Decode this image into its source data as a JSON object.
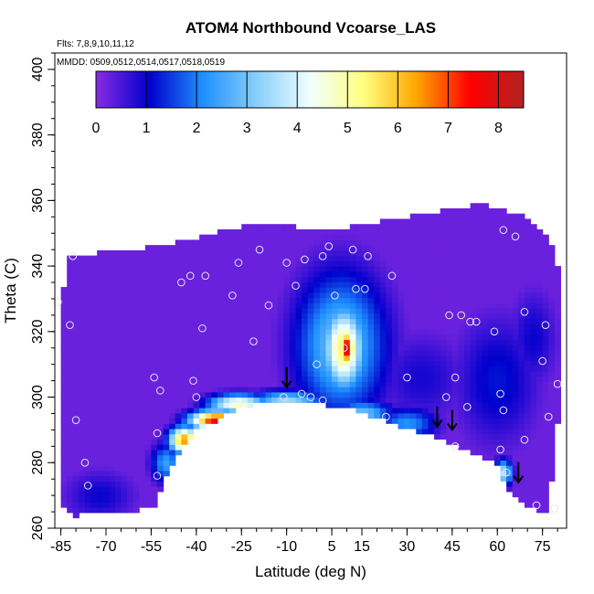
{
  "chart_data": {
    "type": "heatmap",
    "title": "ATOM4 Northbound Vcoarse_LAS",
    "annotations": [
      "Flts: 7,8,9,10,11,12",
      "MMDD: 0509,0512,0514,0517,0518,0519"
    ],
    "xlabel": "Latitude (deg N)",
    "ylabel": "Theta (C)",
    "xlim": [
      -87,
      83
    ],
    "ylim": [
      260,
      405
    ],
    "x_ticks": [
      -85,
      -70,
      -55,
      -40,
      -25,
      -10,
      5,
      15,
      30,
      45,
      60,
      75
    ],
    "x_tick_labels": [
      "-85",
      "-70",
      "-55",
      "-40",
      "-25",
      "-10",
      "5",
      "15",
      "30",
      "45",
      "60",
      "75"
    ],
    "x_minor_step": 5,
    "y_ticks": [
      260,
      280,
      300,
      320,
      340,
      360,
      380,
      400
    ],
    "y_tick_labels": [
      "260",
      "280",
      "300",
      "320",
      "340",
      "360",
      "380",
      "400"
    ],
    "y_minor_step": 5,
    "colorbar": {
      "min": 0,
      "max": 8.5,
      "ticks": [
        0,
        1,
        2,
        3,
        4,
        5,
        6,
        7,
        8
      ],
      "tick_labels": [
        "0",
        "1",
        "2",
        "3",
        "4",
        "5",
        "6",
        "7",
        "8"
      ],
      "colors": [
        "#8a2be2",
        "#0000cd",
        "#1e90ff",
        "#87cefa",
        "#f0ffff",
        "#ffff80",
        "#ffa500",
        "#ff0000",
        "#b22222"
      ]
    },
    "grid": false,
    "field_background_value": 0.25,
    "region_outline": [
      [
        -85,
        329
      ],
      [
        -82,
        343
      ],
      [
        -53,
        346
      ],
      [
        -20,
        353
      ],
      [
        5,
        351
      ],
      [
        54,
        359
      ],
      [
        70,
        355
      ],
      [
        79,
        346
      ],
      [
        82,
        330
      ],
      [
        82,
        304
      ],
      [
        79,
        285
      ],
      [
        77,
        265
      ],
      [
        70,
        266
      ],
      [
        63,
        272
      ],
      [
        60,
        280
      ],
      [
        50,
        284
      ],
      [
        40,
        288
      ],
      [
        25,
        292
      ],
      [
        10,
        297
      ],
      [
        0,
        298
      ],
      [
        -10,
        299
      ],
      [
        -25,
        297
      ],
      [
        -40,
        290
      ],
      [
        -48,
        280
      ],
      [
        -52,
        272
      ],
      [
        -54,
        266
      ],
      [
        -80,
        264
      ],
      [
        -85,
        268
      ]
    ],
    "hotspots": [
      {
        "lat": 10,
        "theta": 315,
        "value": 7.9,
        "r_lat": 3,
        "r_theta": 6
      },
      {
        "lat": 9,
        "theta": 315,
        "value": 5.5,
        "r_lat": 7,
        "r_theta": 13
      },
      {
        "lat": 8,
        "theta": 316,
        "value": 3.0,
        "r_lat": 15,
        "r_theta": 22
      },
      {
        "lat": -33,
        "theta": 293,
        "value": 7.8,
        "r_lat": 9,
        "r_theta": 3
      },
      {
        "lat": -44,
        "theta": 287,
        "value": 6.5,
        "r_lat": 5,
        "r_theta": 4
      },
      {
        "lat": -26,
        "theta": 298,
        "value": 4.8,
        "r_lat": 10,
        "r_theta": 3
      },
      {
        "lat": -10,
        "theta": 299,
        "value": 3.4,
        "r_lat": 12,
        "r_theta": 3
      },
      {
        "lat": 15,
        "theta": 295,
        "value": 3.0,
        "r_lat": 10,
        "r_theta": 4
      },
      {
        "lat": 30,
        "theta": 292,
        "value": 2.2,
        "r_lat": 10,
        "r_theta": 5
      },
      {
        "lat": 62,
        "theta": 277,
        "value": 3.6,
        "r_lat": 3,
        "r_theta": 4
      },
      {
        "lat": -50,
        "theta": 280,
        "value": 2.4,
        "r_lat": 5,
        "r_theta": 6
      },
      {
        "lat": 60,
        "theta": 305,
        "value": 1.2,
        "r_lat": 14,
        "r_theta": 20
      },
      {
        "lat": 72,
        "theta": 318,
        "value": 1.0,
        "r_lat": 8,
        "r_theta": 15
      },
      {
        "lat": -72,
        "theta": 270,
        "value": 1.0,
        "r_lat": 12,
        "r_theta": 8
      },
      {
        "lat": 35,
        "theta": 306,
        "value": 0.9,
        "r_lat": 15,
        "r_theta": 14
      }
    ],
    "observations": [
      {
        "lat": -86,
        "theta": 329
      },
      {
        "lat": -81,
        "theta": 343
      },
      {
        "lat": -82,
        "theta": 322
      },
      {
        "lat": -80,
        "theta": 293
      },
      {
        "lat": -77,
        "theta": 280
      },
      {
        "lat": -76,
        "theta": 273
      },
      {
        "lat": -54,
        "theta": 306
      },
      {
        "lat": -52,
        "theta": 302
      },
      {
        "lat": -53,
        "theta": 289
      },
      {
        "lat": -53,
        "theta": 276
      },
      {
        "lat": -45,
        "theta": 335
      },
      {
        "lat": -42,
        "theta": 337
      },
      {
        "lat": -37,
        "theta": 337
      },
      {
        "lat": -41,
        "theta": 305
      },
      {
        "lat": -40,
        "theta": 300
      },
      {
        "lat": -38,
        "theta": 321
      },
      {
        "lat": -28,
        "theta": 331
      },
      {
        "lat": -26,
        "theta": 341
      },
      {
        "lat": -21,
        "theta": 317
      },
      {
        "lat": -19,
        "theta": 345
      },
      {
        "lat": -16,
        "theta": 328
      },
      {
        "lat": -10,
        "theta": 341
      },
      {
        "lat": -7,
        "theta": 334
      },
      {
        "lat": -4,
        "theta": 342
      },
      {
        "lat": 2,
        "theta": 343
      },
      {
        "lat": 4,
        "theta": 346
      },
      {
        "lat": 6,
        "theta": 331
      },
      {
        "lat": 9,
        "theta": 315
      },
      {
        "lat": 12,
        "theta": 345
      },
      {
        "lat": 13,
        "theta": 333
      },
      {
        "lat": 16,
        "theta": 333
      },
      {
        "lat": 17,
        "theta": 343
      },
      {
        "lat": 23,
        "theta": 294
      },
      {
        "lat": 25,
        "theta": 337
      },
      {
        "lat": 30,
        "theta": 306
      },
      {
        "lat": 44,
        "theta": 325
      },
      {
        "lat": 46,
        "theta": 306
      },
      {
        "lat": 48,
        "theta": 325
      },
      {
        "lat": 51,
        "theta": 323
      },
      {
        "lat": 53,
        "theta": 323
      },
      {
        "lat": 59,
        "theta": 320
      },
      {
        "lat": 62,
        "theta": 351
      },
      {
        "lat": 66,
        "theta": 349
      },
      {
        "lat": 69,
        "theta": 326
      },
      {
        "lat": 75,
        "theta": 311
      },
      {
        "lat": 76,
        "theta": 322
      },
      {
        "lat": 77,
        "theta": 294
      },
      {
        "lat": 80,
        "theta": 304
      },
      {
        "lat": 61,
        "theta": 301
      },
      {
        "lat": 62,
        "theta": 296
      },
      {
        "lat": 46,
        "theta": 285
      },
      {
        "lat": 50,
        "theta": 297
      },
      {
        "lat": 43,
        "theta": 300
      },
      {
        "lat": 61,
        "theta": 284
      },
      {
        "lat": 63,
        "theta": 277
      },
      {
        "lat": 69,
        "theta": 287
      },
      {
        "lat": 73,
        "theta": 267
      },
      {
        "lat": 79,
        "theta": 266
      },
      {
        "lat": -11,
        "theta": 300
      },
      {
        "lat": -2,
        "theta": 300
      },
      {
        "lat": 2,
        "theta": 299
      },
      {
        "lat": 0,
        "theta": 310
      },
      {
        "lat": -5,
        "theta": 301
      }
    ],
    "arrows": [
      {
        "lat": -10,
        "theta": 303
      },
      {
        "lat": 40,
        "theta": 291
      },
      {
        "lat": 45,
        "theta": 290
      },
      {
        "lat": 67,
        "theta": 274
      }
    ]
  }
}
